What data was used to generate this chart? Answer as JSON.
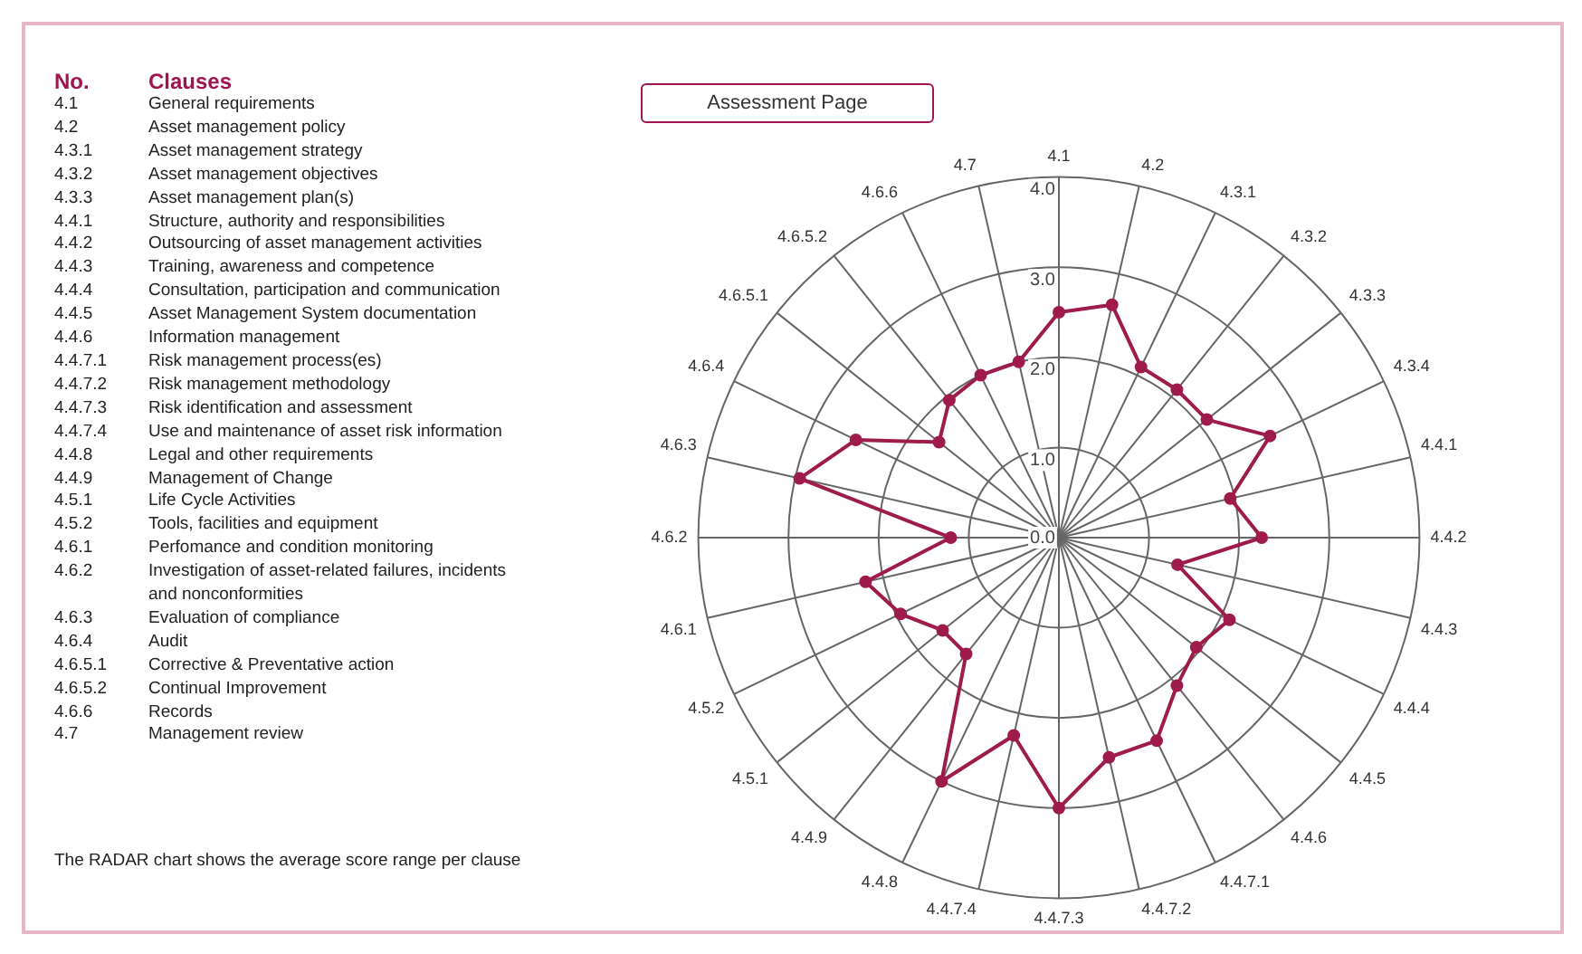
{
  "chart_data": {
    "type": "radar",
    "title": "Assessment Page",
    "categories": [
      "4.1",
      "4.2",
      "4.3.1",
      "4.3.2",
      "4.3.3",
      "4.3.4",
      "4.4.1",
      "4.4.2",
      "4.4.3",
      "4.4.4",
      "4.4.5",
      "4.4.6",
      "4.4.7.1",
      "4.4.7.2",
      "4.4.7.3",
      "4.4.7.4",
      "4.4.8",
      "4.4.9",
      "4.5.1",
      "4.5.2",
      "4.6.1",
      "4.6.2",
      "4.6.3",
      "4.6.4",
      "4.6.5.1",
      "4.6.5.2",
      "4.6.6",
      "4.7"
    ],
    "series": [
      {
        "color": "#9e1b4b",
        "values": [
          2.5,
          2.65,
          2.1,
          2.1,
          2.1,
          2.6,
          1.95,
          2.25,
          1.35,
          2.1,
          1.95,
          2.1,
          2.5,
          2.5,
          3.0,
          2.25,
          3.0,
          1.65,
          1.65,
          1.95,
          2.2,
          1.2,
          2.95,
          2.5,
          1.7,
          1.95,
          2.0,
          2.0
        ]
      }
    ],
    "ylim": [
      0,
      4
    ],
    "yticks": [
      {
        "value": 0,
        "label": "0.0"
      },
      {
        "value": 1,
        "label": "1.0"
      },
      {
        "value": 2,
        "label": "2.0"
      },
      {
        "value": 3,
        "label": "3.0"
      },
      {
        "value": 4,
        "label": "4.0"
      }
    ],
    "grid": true,
    "legend": false,
    "marker": "circle",
    "line_style": "solid",
    "annotations": [
      "The RADAR chart shows the average score range per clause",
      "No.",
      "Clauses",
      "4.1",
      "General requirements",
      "4.2",
      "Asset management policy",
      "4.3.1",
      "Asset management strategy",
      "4.3.2",
      "Asset management objectives",
      "4.3.3",
      "Asset management plan(s)",
      "4.4.1",
      "Structure, authority and responsibilities",
      "4.4.2",
      "Outsourcing of asset management activities",
      "4.4.3",
      "Training, awareness and competence",
      "4.4.4",
      "Consultation, participation and communication",
      "4.4.5",
      "Asset Management System documentation",
      "4.4.6",
      "Information management",
      "4.4.7.1",
      "Risk management process(es)",
      "4.4.7.2",
      "Risk management methodology",
      "4.4.7.3",
      "Risk identification and assessment",
      "4.4.7.4",
      "Use and maintenance of asset risk information",
      "4.4.8",
      "Legal and other requirements",
      "4.4.9",
      "Management of Change",
      "4.5.1",
      "Life Cycle Activities",
      "4.5.2",
      "Tools, facilities and equipment",
      "4.6.1",
      "Perfomance and condition monitoring",
      "4.6.2",
      "Investigation of asset-related failures, incidents and nonconformities",
      "4.6.3",
      "Evaluation of compliance",
      "4.6.4",
      "Audit",
      "4.6.5.1",
      "Corrective & Preventative action",
      "4.6.5.2",
      "Continual Improvement",
      "4.6.6",
      "Records",
      "4.7",
      "Management review"
    ]
  }
}
